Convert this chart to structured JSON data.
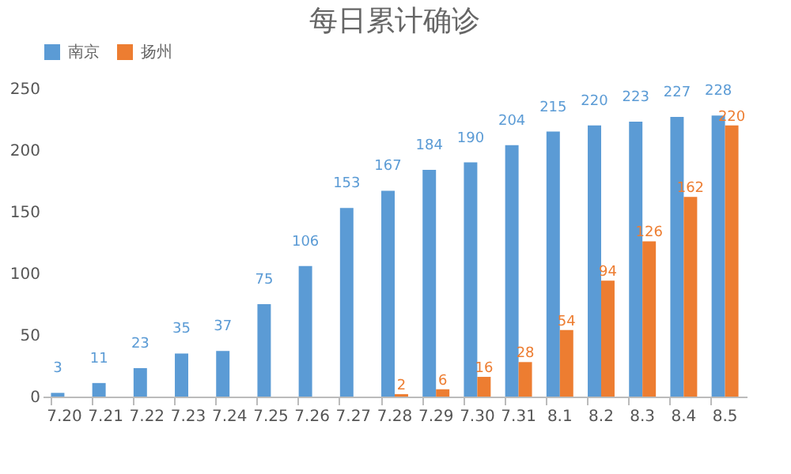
{
  "chart_data": {
    "type": "bar",
    "title": "每日累计确诊",
    "categories": [
      "7.20",
      "7.21",
      "7.22",
      "7.23",
      "7.24",
      "7.25",
      "7.26",
      "7.27",
      "7.28",
      "7.29",
      "7.30",
      "7.31",
      "8.1",
      "8.2",
      "8.3",
      "8.4",
      "8.5"
    ],
    "series": [
      {
        "name": "南京",
        "color": "#5b9bd5",
        "values": [
          3,
          11,
          23,
          35,
          37,
          75,
          106,
          153,
          167,
          184,
          190,
          204,
          215,
          220,
          223,
          227,
          228
        ]
      },
      {
        "name": "扬州",
        "color": "#ed7d31",
        "values": [
          null,
          null,
          null,
          null,
          null,
          null,
          null,
          null,
          2,
          6,
          16,
          28,
          54,
          94,
          126,
          162,
          220
        ]
      }
    ],
    "ylim": [
      0,
      250
    ],
    "yticks": [
      0,
      50,
      100,
      150,
      200,
      250
    ],
    "grid": false,
    "legend": "top",
    "data_labels": true
  }
}
